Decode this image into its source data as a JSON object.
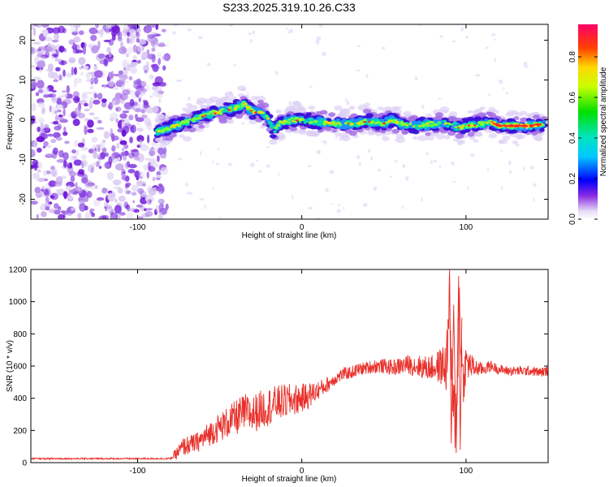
{
  "title": "S233.2025.319.10.26.C33",
  "colors": {
    "background": "#ffffff",
    "axes": "#000000",
    "snr_line": "#e8302a",
    "noise": "#8a2be2"
  },
  "chart_data": [
    {
      "type": "heatmap",
      "name": "spectrogram",
      "xlabel": "Height of straight line (km)",
      "ylabel": "Frequency (Hz)",
      "xlim": [
        -165,
        150
      ],
      "ylim": [
        -25,
        24
      ],
      "xticks": [
        -100,
        0,
        100
      ],
      "xtick_labels": [
        "-100",
        "0",
        "100"
      ],
      "yticks": [
        -20,
        -10,
        0,
        10,
        20
      ],
      "ytick_labels": [
        "-20",
        "-10",
        "0",
        "10",
        "20"
      ],
      "noise_region_km": [
        -165,
        -82
      ],
      "ridge": {
        "x": [
          -88,
          -80,
          -70,
          -60,
          -50,
          -40,
          -35,
          -30,
          -25,
          -20,
          -17,
          -14,
          -10,
          -5,
          0,
          10,
          20,
          30,
          40,
          50,
          55,
          60,
          70,
          80,
          90,
          95,
          100,
          110,
          115,
          120,
          130,
          140,
          148
        ],
        "y": [
          -3,
          -2,
          -0.5,
          1,
          2,
          3,
          4,
          2,
          2,
          0,
          -3,
          -1,
          -0.5,
          0,
          0,
          -0.5,
          -1,
          -1,
          -0.5,
          -1,
          0,
          -1,
          -1.5,
          -1,
          -1,
          -2,
          -1.5,
          -1,
          -0.5,
          -1.5,
          -1.5,
          -1.5,
          -1
        ]
      },
      "colorbar": {
        "label": "Normalized spectral amplitude",
        "ticks": [
          0.0,
          0.2,
          0.4,
          0.6,
          0.8
        ],
        "tick_labels": [
          "0.0",
          "0.2",
          "0.4",
          "0.6",
          "0.8"
        ],
        "range": [
          0,
          0.96
        ]
      }
    },
    {
      "type": "line",
      "name": "snr",
      "xlabel": "Height of straight line (km)",
      "ylabel": "SNR (10 * v/v)",
      "xlim": [
        -165,
        150
      ],
      "ylim": [
        0,
        1200
      ],
      "xticks": [
        -100,
        0,
        100
      ],
      "xtick_labels": [
        "-100",
        "0",
        "100"
      ],
      "yticks": [
        0,
        200,
        400,
        600,
        800,
        1000,
        1200
      ],
      "ytick_labels": [
        "0",
        "200",
        "400",
        "600",
        "800",
        "1000",
        "1200"
      ],
      "series": [
        {
          "name": "SNR",
          "x": [
            -165,
            -140,
            -120,
            -100,
            -80,
            -76,
            -72,
            -65,
            -60,
            -55,
            -50,
            -45,
            -40,
            -35,
            -30,
            -25,
            -20,
            -15,
            -10,
            -5,
            0,
            5,
            10,
            15,
            20,
            25,
            30,
            35,
            40,
            45,
            50,
            55,
            60,
            65,
            70,
            75,
            80,
            85,
            88,
            90,
            92,
            94,
            96,
            98,
            100,
            105,
            110,
            115,
            120,
            125,
            130,
            135,
            140,
            145,
            150
          ],
          "values": [
            25,
            25,
            25,
            25,
            25,
            60,
            100,
            120,
            150,
            190,
            220,
            250,
            280,
            310,
            300,
            330,
            350,
            370,
            380,
            390,
            400,
            420,
            450,
            480,
            520,
            550,
            560,
            580,
            590,
            600,
            600,
            590,
            600,
            610,
            600,
            590,
            590,
            600,
            600,
            1000,
            300,
            300,
            1000,
            500,
            620,
            590,
            580,
            600,
            580,
            570,
            570,
            570,
            570,
            560,
            570
          ],
          "amplitude": [
            5,
            5,
            5,
            5,
            5,
            40,
            60,
            60,
            70,
            80,
            90,
            100,
            110,
            120,
            120,
            120,
            120,
            110,
            110,
            100,
            90,
            80,
            60,
            50,
            40,
            40,
            40,
            40,
            40,
            45,
            45,
            50,
            55,
            60,
            70,
            75,
            80,
            120,
            180,
            200,
            220,
            250,
            220,
            180,
            120,
            60,
            40,
            35,
            30,
            30,
            30,
            30,
            30,
            30,
            30
          ],
          "color": "#e8302a"
        }
      ]
    }
  ]
}
